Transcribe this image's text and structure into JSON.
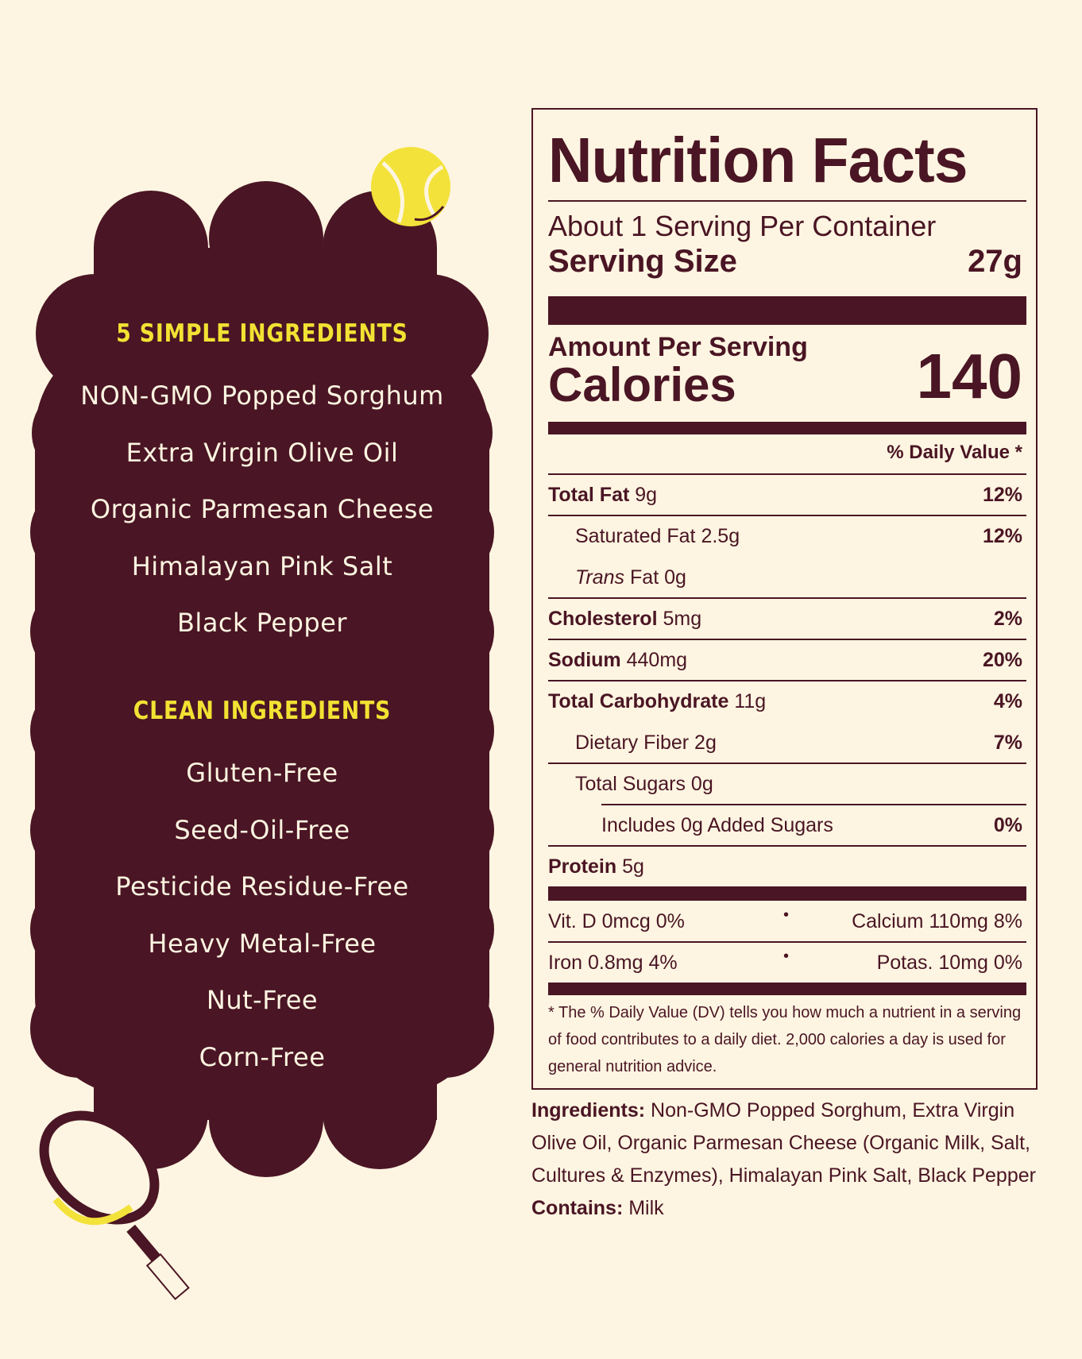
{
  "left_panel": {
    "heading_simple": "5 SIMPLE INGREDIENTS",
    "simple_ingredients": [
      "NON-GMO Popped Sorghum",
      "Extra Virgin Olive Oil",
      "Organic Parmesan Cheese",
      "Himalayan Pink Salt",
      "Black Pepper"
    ],
    "heading_clean": "CLEAN INGREDIENTS",
    "clean_claims": [
      "Gluten-Free",
      "Seed-Oil-Free",
      "Pesticide Residue-Free",
      "Heavy Metal-Free",
      "Nut-Free",
      "Corn-Free"
    ]
  },
  "nutrition": {
    "title": "Nutrition Facts",
    "servings_per_container": "About 1 Serving Per Container",
    "serving_size_label": "Serving Size",
    "serving_size_value": "27g",
    "amount_per_serving": "Amount Per Serving",
    "calories_label": "Calories",
    "calories_value": "140",
    "daily_value_header": "% Daily Value *",
    "rows": [
      {
        "name": "Total Fat",
        "amount": "9g",
        "dv": "12%"
      },
      {
        "name": "Saturated Fat",
        "amount": "2.5g",
        "dv": "12%"
      },
      {
        "name_italic": "Trans",
        "name": "Fat",
        "amount": "0g",
        "dv": ""
      },
      {
        "name": "Cholesterol",
        "amount": "5mg",
        "dv": "2%"
      },
      {
        "name": "Sodium",
        "amount": "440mg",
        "dv": "20%"
      },
      {
        "name": "Total Carbohydrate",
        "amount": "11g",
        "dv": "4%"
      },
      {
        "name": "Dietary Fiber",
        "amount": "2g",
        "dv": "7%"
      },
      {
        "name": "Total Sugars",
        "amount": "0g",
        "dv": ""
      },
      {
        "name": "Includes 0g Added Sugars",
        "amount": "",
        "dv": "0%"
      },
      {
        "name": "Protein",
        "amount": "5g",
        "dv": ""
      }
    ],
    "vitamins": {
      "vit_d": "Vit. D 0mcg 0%",
      "calcium": "Calcium 110mg 8%",
      "iron": "Iron 0.8mg 4%",
      "potassium": "Potas. 10mg 0%",
      "separator": "•"
    },
    "footnote": "* The % Daily Value (DV) tells you how much a nutrient in a serving of food contributes to a daily diet. 2,000 calories a day is used for general nutrition advice."
  },
  "ingredients_label": "Ingredients:",
  "ingredients_text": "Non-GMO Popped Sorghum, Extra Virgin Olive Oil, Organic Parmesan Cheese (Organic Milk, Salt, Cultures & Enzymes), Himalayan Pink Salt, Black Pepper",
  "contains_label": "Contains:",
  "contains_text": "Milk",
  "icons": {
    "tennis_ball": "tennis-ball-icon",
    "tennis_racket": "tennis-racket-icon"
  },
  "colors": {
    "background": "#fdf5e1",
    "maroon": "#4a1524",
    "yellow": "#f2e233"
  }
}
